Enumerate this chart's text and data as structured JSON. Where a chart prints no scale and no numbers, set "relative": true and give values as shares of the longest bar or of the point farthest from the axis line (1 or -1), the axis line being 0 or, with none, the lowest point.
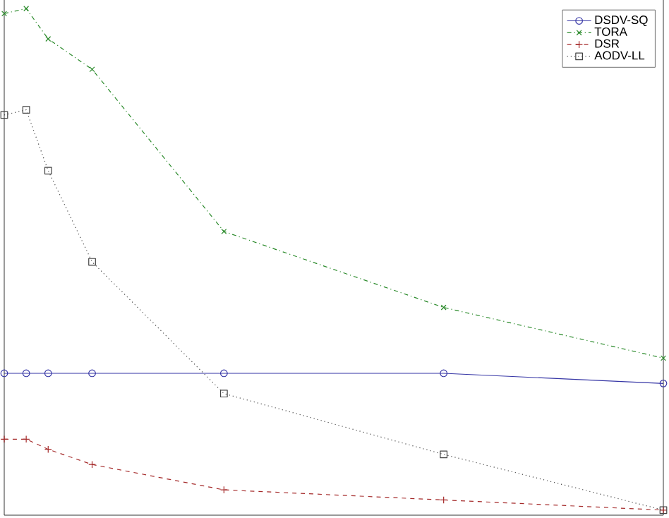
{
  "chart_data": {
    "type": "line",
    "relative": true,
    "categories": [
      null,
      null,
      null,
      null,
      null,
      null,
      null,
      null,
      null,
      null,
      null,
      null,
      null,
      null,
      null,
      null,
      null,
      null,
      null,
      null,
      null,
      null,
      null,
      null,
      null,
      null,
      null,
      null,
      null,
      null,
      null
    ],
    "legend": "top right",
    "series": [
      {
        "name": "DSDV-SQ",
        "color": "#3535a5",
        "marker": "circle",
        "line_style": "solid",
        "values": [
          0.28,
          0.28,
          0.28,
          null,
          0.28,
          null,
          null,
          null,
          null,
          null,
          0.28,
          null,
          null,
          null,
          null,
          null,
          null,
          null,
          null,
          null,
          0.28,
          null,
          null,
          null,
          null,
          null,
          null,
          null,
          null,
          null,
          0.26
        ]
      },
      {
        "name": "TORA",
        "color": "#2a8a2a",
        "marker": "cross",
        "line_style": "dashdot",
        "values": [
          0.99,
          1,
          0.94,
          null,
          0.88,
          null,
          null,
          null,
          null,
          null,
          0.56,
          null,
          null,
          null,
          null,
          null,
          null,
          null,
          null,
          null,
          0.41,
          null,
          null,
          null,
          null,
          null,
          null,
          null,
          null,
          null,
          0.31
        ]
      },
      {
        "name": "DSR",
        "color": "#a52a2a",
        "marker": "plus",
        "line_style": "dashed",
        "values": [
          0.15,
          0.15,
          0.13,
          null,
          0.1,
          null,
          null,
          null,
          null,
          null,
          0.05,
          null,
          null,
          null,
          null,
          null,
          null,
          null,
          null,
          null,
          0.03,
          null,
          null,
          null,
          null,
          null,
          null,
          null,
          null,
          null,
          0.01
        ]
      },
      {
        "name": "AODV-LL",
        "color": "#444444",
        "marker": "square",
        "line_style": "dotted",
        "values": [
          0.79,
          0.8,
          0.68,
          null,
          0.5,
          null,
          null,
          null,
          null,
          null,
          0.24,
          null,
          null,
          null,
          null,
          null,
          null,
          null,
          null,
          null,
          0.12,
          null,
          null,
          null,
          null,
          null,
          null,
          null,
          null,
          null,
          0.01
        ]
      }
    ]
  }
}
